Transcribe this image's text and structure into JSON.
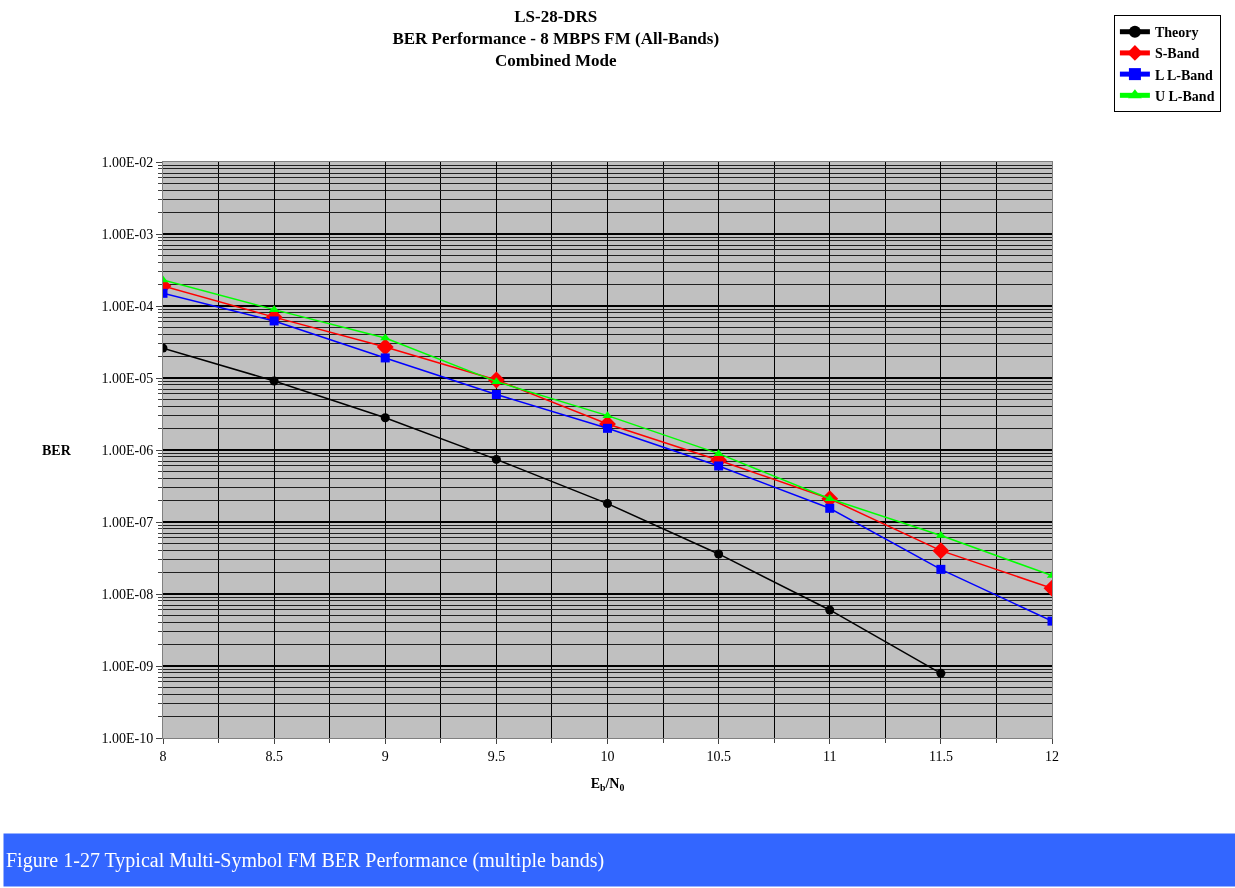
{
  "chart_data": {
    "type": "line",
    "title": "LS-28-DRS\nBER Performance - 8 MBPS FM (All-Bands)\nCombined Mode",
    "xlabel": "E$_{b}$/N$_{0}$",
    "ylabel": "BER",
    "x": [
      8,
      8.5,
      9,
      9.5,
      10,
      10.5,
      11,
      11.5,
      12
    ],
    "series": [
      {
        "name": "Theory",
        "color": "#000000",
        "marker": "circle",
        "values": [
          2.6e-05,
          9.1e-06,
          2.8e-06,
          7.4e-07,
          1.8e-07,
          3.6e-08,
          6e-09,
          7.9e-10,
          null
        ]
      },
      {
        "name": "S-Band",
        "color": "#ff0000",
        "marker": "diamond",
        "values": [
          0.00019,
          7e-05,
          2.7e-05,
          9.4e-06,
          2.3e-06,
          7.2e-07,
          2.1e-07,
          4e-08,
          1.2e-08
        ]
      },
      {
        "name": "L L-Band",
        "color": "#0000ff",
        "marker": "square",
        "values": [
          0.00015,
          6.2e-05,
          1.9e-05,
          5.9e-06,
          2e-06,
          6e-07,
          1.55e-07,
          2.2e-08,
          4.2e-09
        ]
      },
      {
        "name": "U L-Band",
        "color": "#00ff00",
        "marker": "triangle",
        "values": [
          0.00023,
          8.9e-05,
          3.6e-05,
          8.9e-06,
          3e-06,
          8.9e-07,
          2.1e-07,
          6.5e-08,
          1.8e-08
        ]
      }
    ],
    "log": "y",
    "ylim": [
      1e-10,
      0.01
    ],
    "yticks": [
      {
        "value": 1e-10,
        "label": "1.00E-10"
      },
      {
        "value": 1e-09,
        "label": "1.00E-09"
      },
      {
        "value": 1e-08,
        "label": "1.00E-08"
      },
      {
        "value": 1e-07,
        "label": "1.00E-07"
      },
      {
        "value": 1e-06,
        "label": "1.00E-06"
      },
      {
        "value": 1e-05,
        "label": "1.00E-05"
      },
      {
        "value": 0.0001,
        "label": "1.00E-04"
      },
      {
        "value": 0.001,
        "label": "1.00E-03"
      },
      {
        "value": 0.01,
        "label": "1.00E-02"
      }
    ],
    "xlim": [
      8,
      12
    ],
    "xticks": [
      8,
      8.5,
      9,
      9.5,
      10,
      10.5,
      11,
      11.5,
      12
    ],
    "grid": true,
    "legend": "top right",
    "line_style": "solid",
    "annotations": [
      "Figure 1-27 Typical Multi-Symbol FM BER Performance (multiple bands)"
    ]
  }
}
